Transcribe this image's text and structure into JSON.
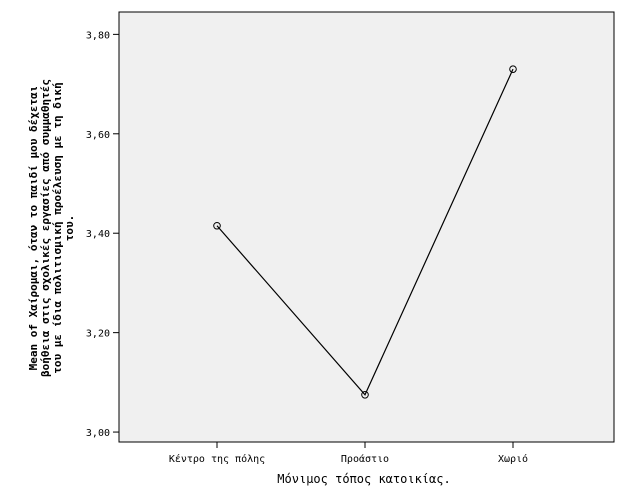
{
  "chart_data": {
    "type": "line",
    "title": "",
    "xlabel": "Μόνιμος τόπος κατοικίας.",
    "ylabel_lines": [
      "Mean of Χαίρομαι, όταν το παιδί μου δέχεται",
      "βοήθεια στις σχολικές εργασίες από συμμαθητές",
      "του με ίδια πολιτισμική προέλευση με τη δική",
      "του."
    ],
    "categories": [
      "Κέντρο της πόλης",
      "Προάστιο",
      "Χωριό"
    ],
    "series": [
      {
        "values": [
          3.415,
          3.075,
          3.73
        ]
      }
    ],
    "ylim": [
      2.98,
      3.845
    ],
    "yticks": [
      3.0,
      3.2,
      3.4,
      3.6,
      3.8
    ],
    "ytick_labels": [
      "3,00",
      "3,20",
      "3,40",
      "3,60",
      "3,80"
    ],
    "grid": false,
    "legend": false,
    "plot_background": "#f0f0f0",
    "line_color": "#000000"
  }
}
